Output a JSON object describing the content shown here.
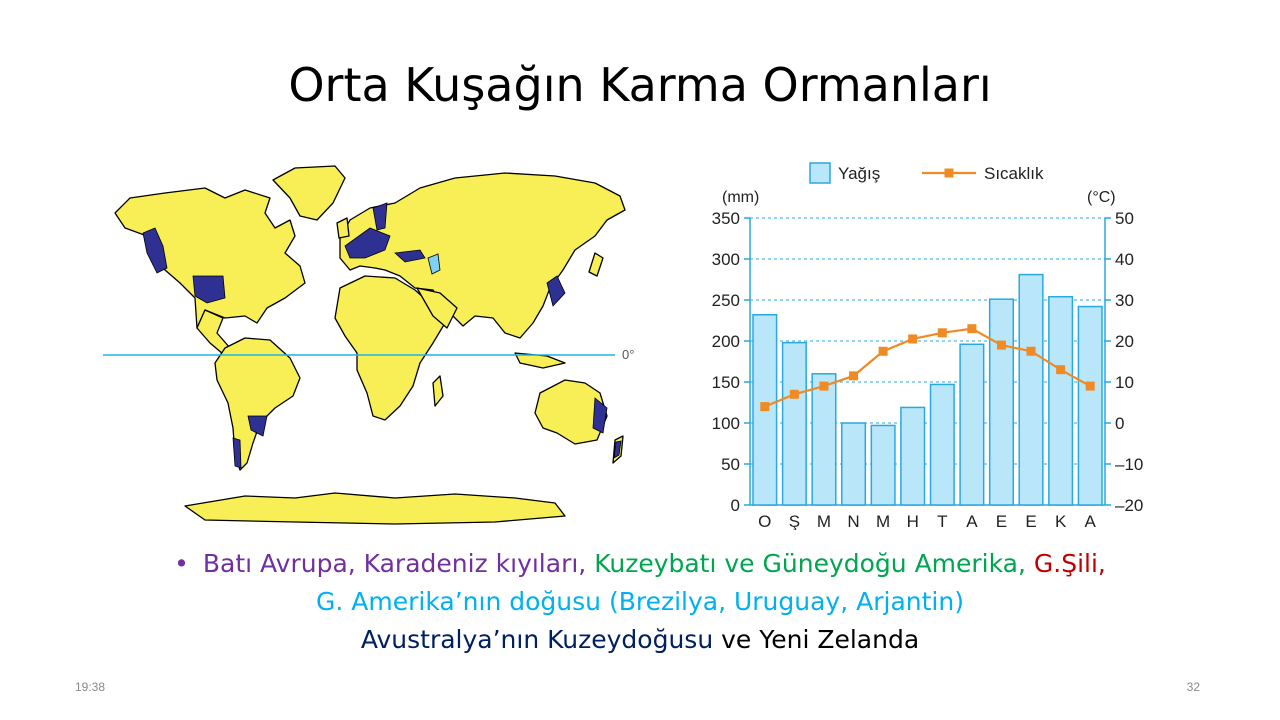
{
  "slide": {
    "title": "Orta Kuşağın Karma Ormanları",
    "time": "19:38",
    "page_number": "32"
  },
  "map": {
    "equator_label": "0°",
    "colors": {
      "land": "#f7ef55",
      "forest": "#2e3192",
      "equator": "#1fb3e8",
      "ocean": "#ffffff"
    }
  },
  "bullet": {
    "line1": {
      "part1": "Batı Avrupa, Karadeniz kıyıları,",
      "part2": "Kuzeybatı ve Güneydoğu Amerika,",
      "part3": "G.Şili,"
    },
    "line2": "G. Amerika’nın doğusu (Brezilya, Uruguay, Arjantin)",
    "line3": {
      "part1": "Avustralya’nın Kuzeydoğusu",
      "part2": "ve Yeni Zelanda"
    },
    "colors": {
      "purple": "#7030a0",
      "green": "#00a550",
      "red": "#c00000",
      "cyan": "#00b0f0",
      "navy": "#002060"
    }
  },
  "chart_data": {
    "type": "bar",
    "categories": [
      "O",
      "Ş",
      "M",
      "N",
      "M",
      "H",
      "T",
      "A",
      "E",
      "E",
      "K",
      "A"
    ],
    "series": [
      {
        "name": "Yağış",
        "type": "bar",
        "axis": "left",
        "values": [
          232,
          198,
          160,
          100,
          97,
          119,
          147,
          196,
          251,
          281,
          254,
          242
        ],
        "color": "#b9e6f8"
      },
      {
        "name": "Sıcaklık",
        "type": "line",
        "axis": "right",
        "values": [
          4,
          7,
          9,
          11.5,
          17.5,
          20.5,
          22,
          23,
          19,
          17.5,
          13,
          9
        ],
        "color": "#f08a24"
      }
    ],
    "ylabel_left": "(mm)",
    "ylabel_right": "(°C)",
    "ylim_left": [
      0,
      350
    ],
    "ylim_right": [
      -20,
      50
    ],
    "yticks_left": [
      "0",
      "50",
      "100",
      "150",
      "200",
      "250",
      "300",
      "350"
    ],
    "yticks_right": [
      "–20",
      "–10",
      "0",
      "10",
      "20",
      "30",
      "40",
      "50"
    ],
    "legend_position": "top",
    "grid": true,
    "axis_color": "#29a9e0"
  }
}
